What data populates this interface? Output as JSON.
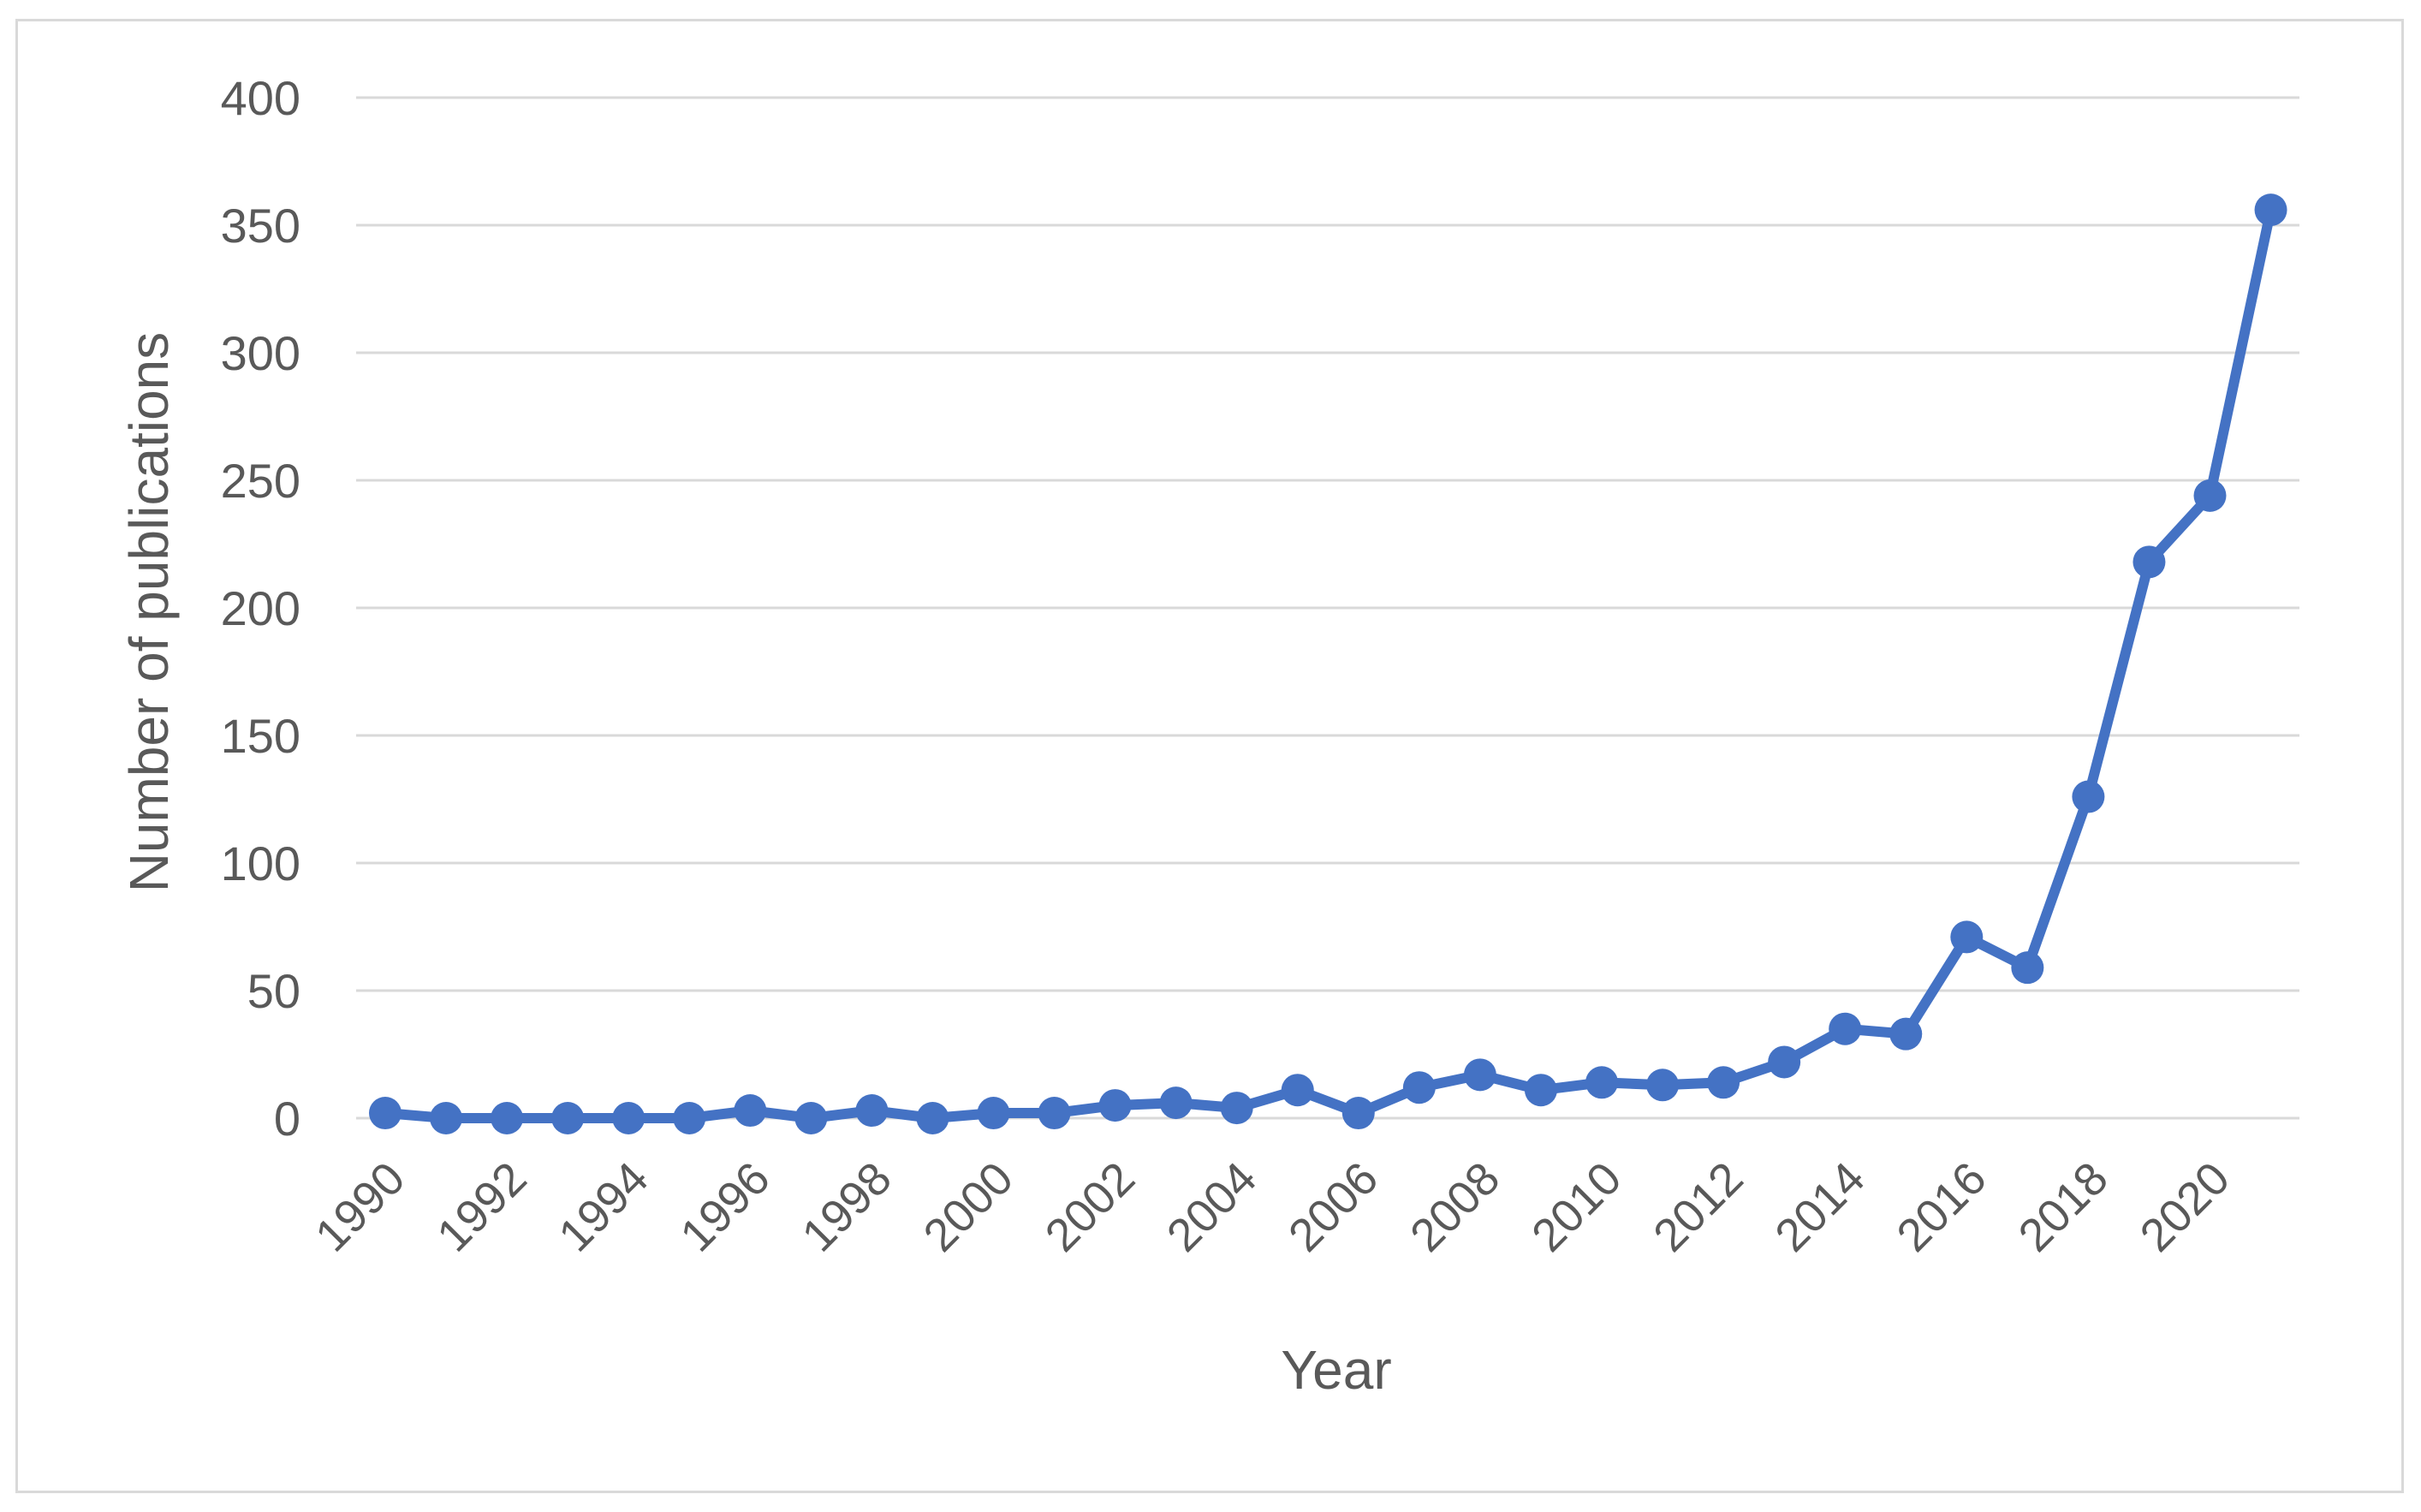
{
  "chart_data": {
    "type": "line",
    "title": "",
    "xlabel": "Year",
    "ylabel": "Number of publications",
    "ylim": [
      0,
      400
    ],
    "yticks": [
      0,
      50,
      100,
      150,
      200,
      250,
      300,
      350,
      400
    ],
    "xticks": [
      1990,
      1992,
      1994,
      1996,
      1998,
      2000,
      2002,
      2004,
      2006,
      2008,
      2010,
      2012,
      2014,
      2016,
      2018,
      2020
    ],
    "grid": true,
    "legend": "none",
    "color": "#4472C4",
    "x": [
      1990,
      1991,
      1992,
      1993,
      1994,
      1995,
      1996,
      1997,
      1998,
      1999,
      2000,
      2001,
      2002,
      2003,
      2004,
      2005,
      2006,
      2007,
      2008,
      2009,
      2010,
      2011,
      2012,
      2013,
      2014,
      2015,
      2016,
      2017,
      2018,
      2019,
      2020,
      2021
    ],
    "series": [
      {
        "values": [
          2,
          0,
          0,
          0,
          0,
          0,
          3,
          0,
          3,
          0,
          2,
          2,
          5,
          6,
          4,
          11,
          2,
          12,
          17,
          11,
          14,
          13,
          14,
          22,
          35,
          33,
          71,
          59,
          126,
          218,
          244,
          356
        ]
      }
    ]
  }
}
